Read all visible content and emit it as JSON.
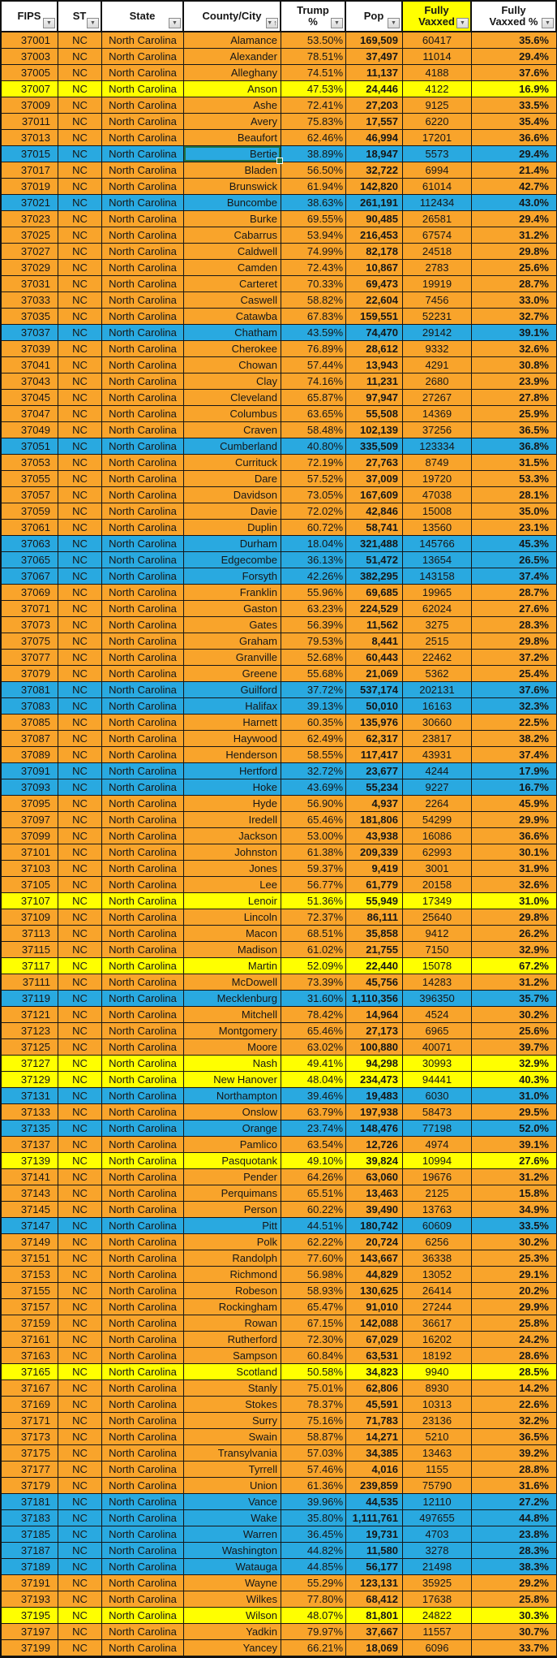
{
  "colors": {
    "row_orange": "#F9A42B",
    "row_yellow": "#FFFF00",
    "row_blue": "#29A9E0",
    "header_highlight": "#FFFF00",
    "selection_border": "#217346",
    "grid_line": "#161616"
  },
  "icons": {
    "filter_dropdown": "▼",
    "sort_ascending": "↑"
  },
  "table": {
    "headers": [
      {
        "key": "fips",
        "label": "FIPS"
      },
      {
        "key": "st",
        "label": "ST"
      },
      {
        "key": "state",
        "label": "State"
      },
      {
        "key": "county",
        "label": "County/City",
        "sorted": "ascending"
      },
      {
        "key": "trump_pct",
        "label": "Trump\n%"
      },
      {
        "key": "pop",
        "label": "Pop"
      },
      {
        "key": "fully_vaxxed",
        "label": "Fully\nVaxxed",
        "highlight": true
      },
      {
        "key": "fully_vaxxed_pct",
        "label": "Fully\nVaxxed %"
      }
    ],
    "selected_cell": {
      "fips": "37015",
      "column": "county"
    },
    "rows": [
      [
        "37001",
        "NC",
        "North Carolina",
        "Alamance",
        "53.50%",
        "169,509",
        "60417",
        "35.6%",
        "orange"
      ],
      [
        "37003",
        "NC",
        "North Carolina",
        "Alexander",
        "78.51%",
        "37,497",
        "11014",
        "29.4%",
        "orange"
      ],
      [
        "37005",
        "NC",
        "North Carolina",
        "Alleghany",
        "74.51%",
        "11,137",
        "4188",
        "37.6%",
        "orange"
      ],
      [
        "37007",
        "NC",
        "North Carolina",
        "Anson",
        "47.53%",
        "24,446",
        "4122",
        "16.9%",
        "yellow"
      ],
      [
        "37009",
        "NC",
        "North Carolina",
        "Ashe",
        "72.41%",
        "27,203",
        "9125",
        "33.5%",
        "orange"
      ],
      [
        "37011",
        "NC",
        "North Carolina",
        "Avery",
        "75.83%",
        "17,557",
        "6220",
        "35.4%",
        "orange"
      ],
      [
        "37013",
        "NC",
        "North Carolina",
        "Beaufort",
        "62.46%",
        "46,994",
        "17201",
        "36.6%",
        "orange"
      ],
      [
        "37015",
        "NC",
        "North Carolina",
        "Bertie",
        "38.89%",
        "18,947",
        "5573",
        "29.4%",
        "blue"
      ],
      [
        "37017",
        "NC",
        "North Carolina",
        "Bladen",
        "56.50%",
        "32,722",
        "6994",
        "21.4%",
        "orange"
      ],
      [
        "37019",
        "NC",
        "North Carolina",
        "Brunswick",
        "61.94%",
        "142,820",
        "61014",
        "42.7%",
        "orange"
      ],
      [
        "37021",
        "NC",
        "North Carolina",
        "Buncombe",
        "38.63%",
        "261,191",
        "112434",
        "43.0%",
        "blue"
      ],
      [
        "37023",
        "NC",
        "North Carolina",
        "Burke",
        "69.55%",
        "90,485",
        "26581",
        "29.4%",
        "orange"
      ],
      [
        "37025",
        "NC",
        "North Carolina",
        "Cabarrus",
        "53.94%",
        "216,453",
        "67574",
        "31.2%",
        "orange"
      ],
      [
        "37027",
        "NC",
        "North Carolina",
        "Caldwell",
        "74.99%",
        "82,178",
        "24518",
        "29.8%",
        "orange"
      ],
      [
        "37029",
        "NC",
        "North Carolina",
        "Camden",
        "72.43%",
        "10,867",
        "2783",
        "25.6%",
        "orange"
      ],
      [
        "37031",
        "NC",
        "North Carolina",
        "Carteret",
        "70.33%",
        "69,473",
        "19919",
        "28.7%",
        "orange"
      ],
      [
        "37033",
        "NC",
        "North Carolina",
        "Caswell",
        "58.82%",
        "22,604",
        "7456",
        "33.0%",
        "orange"
      ],
      [
        "37035",
        "NC",
        "North Carolina",
        "Catawba",
        "67.83%",
        "159,551",
        "52231",
        "32.7%",
        "orange"
      ],
      [
        "37037",
        "NC",
        "North Carolina",
        "Chatham",
        "43.59%",
        "74,470",
        "29142",
        "39.1%",
        "blue"
      ],
      [
        "37039",
        "NC",
        "North Carolina",
        "Cherokee",
        "76.89%",
        "28,612",
        "9332",
        "32.6%",
        "orange"
      ],
      [
        "37041",
        "NC",
        "North Carolina",
        "Chowan",
        "57.44%",
        "13,943",
        "4291",
        "30.8%",
        "orange"
      ],
      [
        "37043",
        "NC",
        "North Carolina",
        "Clay",
        "74.16%",
        "11,231",
        "2680",
        "23.9%",
        "orange"
      ],
      [
        "37045",
        "NC",
        "North Carolina",
        "Cleveland",
        "65.87%",
        "97,947",
        "27267",
        "27.8%",
        "orange"
      ],
      [
        "37047",
        "NC",
        "North Carolina",
        "Columbus",
        "63.65%",
        "55,508",
        "14369",
        "25.9%",
        "orange"
      ],
      [
        "37049",
        "NC",
        "North Carolina",
        "Craven",
        "58.48%",
        "102,139",
        "37256",
        "36.5%",
        "orange"
      ],
      [
        "37051",
        "NC",
        "North Carolina",
        "Cumberland",
        "40.80%",
        "335,509",
        "123334",
        "36.8%",
        "blue"
      ],
      [
        "37053",
        "NC",
        "North Carolina",
        "Currituck",
        "72.19%",
        "27,763",
        "8749",
        "31.5%",
        "orange"
      ],
      [
        "37055",
        "NC",
        "North Carolina",
        "Dare",
        "57.52%",
        "37,009",
        "19720",
        "53.3%",
        "orange"
      ],
      [
        "37057",
        "NC",
        "North Carolina",
        "Davidson",
        "73.05%",
        "167,609",
        "47038",
        "28.1%",
        "orange"
      ],
      [
        "37059",
        "NC",
        "North Carolina",
        "Davie",
        "72.02%",
        "42,846",
        "15008",
        "35.0%",
        "orange"
      ],
      [
        "37061",
        "NC",
        "North Carolina",
        "Duplin",
        "60.72%",
        "58,741",
        "13560",
        "23.1%",
        "orange"
      ],
      [
        "37063",
        "NC",
        "North Carolina",
        "Durham",
        "18.04%",
        "321,488",
        "145766",
        "45.3%",
        "blue"
      ],
      [
        "37065",
        "NC",
        "North Carolina",
        "Edgecombe",
        "36.13%",
        "51,472",
        "13654",
        "26.5%",
        "blue"
      ],
      [
        "37067",
        "NC",
        "North Carolina",
        "Forsyth",
        "42.26%",
        "382,295",
        "143158",
        "37.4%",
        "blue"
      ],
      [
        "37069",
        "NC",
        "North Carolina",
        "Franklin",
        "55.96%",
        "69,685",
        "19965",
        "28.7%",
        "orange"
      ],
      [
        "37071",
        "NC",
        "North Carolina",
        "Gaston",
        "63.23%",
        "224,529",
        "62024",
        "27.6%",
        "orange"
      ],
      [
        "37073",
        "NC",
        "North Carolina",
        "Gates",
        "56.39%",
        "11,562",
        "3275",
        "28.3%",
        "orange"
      ],
      [
        "37075",
        "NC",
        "North Carolina",
        "Graham",
        "79.53%",
        "8,441",
        "2515",
        "29.8%",
        "orange"
      ],
      [
        "37077",
        "NC",
        "North Carolina",
        "Granville",
        "52.68%",
        "60,443",
        "22462",
        "37.2%",
        "orange"
      ],
      [
        "37079",
        "NC",
        "North Carolina",
        "Greene",
        "55.68%",
        "21,069",
        "5362",
        "25.4%",
        "orange"
      ],
      [
        "37081",
        "NC",
        "North Carolina",
        "Guilford",
        "37.72%",
        "537,174",
        "202131",
        "37.6%",
        "blue"
      ],
      [
        "37083",
        "NC",
        "North Carolina",
        "Halifax",
        "39.13%",
        "50,010",
        "16163",
        "32.3%",
        "blue"
      ],
      [
        "37085",
        "NC",
        "North Carolina",
        "Harnett",
        "60.35%",
        "135,976",
        "30660",
        "22.5%",
        "orange"
      ],
      [
        "37087",
        "NC",
        "North Carolina",
        "Haywood",
        "62.49%",
        "62,317",
        "23817",
        "38.2%",
        "orange"
      ],
      [
        "37089",
        "NC",
        "North Carolina",
        "Henderson",
        "58.55%",
        "117,417",
        "43931",
        "37.4%",
        "orange"
      ],
      [
        "37091",
        "NC",
        "North Carolina",
        "Hertford",
        "32.72%",
        "23,677",
        "4244",
        "17.9%",
        "blue"
      ],
      [
        "37093",
        "NC",
        "North Carolina",
        "Hoke",
        "43.69%",
        "55,234",
        "9227",
        "16.7%",
        "blue"
      ],
      [
        "37095",
        "NC",
        "North Carolina",
        "Hyde",
        "56.90%",
        "4,937",
        "2264",
        "45.9%",
        "orange"
      ],
      [
        "37097",
        "NC",
        "North Carolina",
        "Iredell",
        "65.46%",
        "181,806",
        "54299",
        "29.9%",
        "orange"
      ],
      [
        "37099",
        "NC",
        "North Carolina",
        "Jackson",
        "53.00%",
        "43,938",
        "16086",
        "36.6%",
        "orange"
      ],
      [
        "37101",
        "NC",
        "North Carolina",
        "Johnston",
        "61.38%",
        "209,339",
        "62993",
        "30.1%",
        "orange"
      ],
      [
        "37103",
        "NC",
        "North Carolina",
        "Jones",
        "59.37%",
        "9,419",
        "3001",
        "31.9%",
        "orange"
      ],
      [
        "37105",
        "NC",
        "North Carolina",
        "Lee",
        "56.77%",
        "61,779",
        "20158",
        "32.6%",
        "orange"
      ],
      [
        "37107",
        "NC",
        "North Carolina",
        "Lenoir",
        "51.36%",
        "55,949",
        "17349",
        "31.0%",
        "yellow"
      ],
      [
        "37109",
        "NC",
        "North Carolina",
        "Lincoln",
        "72.37%",
        "86,111",
        "25640",
        "29.8%",
        "orange"
      ],
      [
        "37113",
        "NC",
        "North Carolina",
        "Macon",
        "68.51%",
        "35,858",
        "9412",
        "26.2%",
        "orange"
      ],
      [
        "37115",
        "NC",
        "North Carolina",
        "Madison",
        "61.02%",
        "21,755",
        "7150",
        "32.9%",
        "orange"
      ],
      [
        "37117",
        "NC",
        "North Carolina",
        "Martin",
        "52.09%",
        "22,440",
        "15078",
        "67.2%",
        "yellow"
      ],
      [
        "37111",
        "NC",
        "North Carolina",
        "McDowell",
        "73.39%",
        "45,756",
        "14283",
        "31.2%",
        "orange"
      ],
      [
        "37119",
        "NC",
        "North Carolina",
        "Mecklenburg",
        "31.60%",
        "1,110,356",
        "396350",
        "35.7%",
        "blue"
      ],
      [
        "37121",
        "NC",
        "North Carolina",
        "Mitchell",
        "78.42%",
        "14,964",
        "4524",
        "30.2%",
        "orange"
      ],
      [
        "37123",
        "NC",
        "North Carolina",
        "Montgomery",
        "65.46%",
        "27,173",
        "6965",
        "25.6%",
        "orange"
      ],
      [
        "37125",
        "NC",
        "North Carolina",
        "Moore",
        "63.02%",
        "100,880",
        "40071",
        "39.7%",
        "orange"
      ],
      [
        "37127",
        "NC",
        "North Carolina",
        "Nash",
        "49.41%",
        "94,298",
        "30993",
        "32.9%",
        "yellow"
      ],
      [
        "37129",
        "NC",
        "North Carolina",
        "New Hanover",
        "48.04%",
        "234,473",
        "94441",
        "40.3%",
        "yellow"
      ],
      [
        "37131",
        "NC",
        "North Carolina",
        "Northampton",
        "39.46%",
        "19,483",
        "6030",
        "31.0%",
        "blue"
      ],
      [
        "37133",
        "NC",
        "North Carolina",
        "Onslow",
        "63.79%",
        "197,938",
        "58473",
        "29.5%",
        "orange"
      ],
      [
        "37135",
        "NC",
        "North Carolina",
        "Orange",
        "23.74%",
        "148,476",
        "77198",
        "52.0%",
        "blue"
      ],
      [
        "37137",
        "NC",
        "North Carolina",
        "Pamlico",
        "63.54%",
        "12,726",
        "4974",
        "39.1%",
        "orange"
      ],
      [
        "37139",
        "NC",
        "North Carolina",
        "Pasquotank",
        "49.10%",
        "39,824",
        "10994",
        "27.6%",
        "yellow"
      ],
      [
        "37141",
        "NC",
        "North Carolina",
        "Pender",
        "64.26%",
        "63,060",
        "19676",
        "31.2%",
        "orange"
      ],
      [
        "37143",
        "NC",
        "North Carolina",
        "Perquimans",
        "65.51%",
        "13,463",
        "2125",
        "15.8%",
        "orange"
      ],
      [
        "37145",
        "NC",
        "North Carolina",
        "Person",
        "60.22%",
        "39,490",
        "13763",
        "34.9%",
        "orange"
      ],
      [
        "37147",
        "NC",
        "North Carolina",
        "Pitt",
        "44.51%",
        "180,742",
        "60609",
        "33.5%",
        "blue"
      ],
      [
        "37149",
        "NC",
        "North Carolina",
        "Polk",
        "62.22%",
        "20,724",
        "6256",
        "30.2%",
        "orange"
      ],
      [
        "37151",
        "NC",
        "North Carolina",
        "Randolph",
        "77.60%",
        "143,667",
        "36338",
        "25.3%",
        "orange"
      ],
      [
        "37153",
        "NC",
        "North Carolina",
        "Richmond",
        "56.98%",
        "44,829",
        "13052",
        "29.1%",
        "orange"
      ],
      [
        "37155",
        "NC",
        "North Carolina",
        "Robeson",
        "58.93%",
        "130,625",
        "26414",
        "20.2%",
        "orange"
      ],
      [
        "37157",
        "NC",
        "North Carolina",
        "Rockingham",
        "65.47%",
        "91,010",
        "27244",
        "29.9%",
        "orange"
      ],
      [
        "37159",
        "NC",
        "North Carolina",
        "Rowan",
        "67.15%",
        "142,088",
        "36617",
        "25.8%",
        "orange"
      ],
      [
        "37161",
        "NC",
        "North Carolina",
        "Rutherford",
        "72.30%",
        "67,029",
        "16202",
        "24.2%",
        "orange"
      ],
      [
        "37163",
        "NC",
        "North Carolina",
        "Sampson",
        "60.84%",
        "63,531",
        "18192",
        "28.6%",
        "orange"
      ],
      [
        "37165",
        "NC",
        "North Carolina",
        "Scotland",
        "50.58%",
        "34,823",
        "9940",
        "28.5%",
        "yellow"
      ],
      [
        "37167",
        "NC",
        "North Carolina",
        "Stanly",
        "75.01%",
        "62,806",
        "8930",
        "14.2%",
        "orange"
      ],
      [
        "37169",
        "NC",
        "North Carolina",
        "Stokes",
        "78.37%",
        "45,591",
        "10313",
        "22.6%",
        "orange"
      ],
      [
        "37171",
        "NC",
        "North Carolina",
        "Surry",
        "75.16%",
        "71,783",
        "23136",
        "32.2%",
        "orange"
      ],
      [
        "37173",
        "NC",
        "North Carolina",
        "Swain",
        "58.87%",
        "14,271",
        "5210",
        "36.5%",
        "orange"
      ],
      [
        "37175",
        "NC",
        "North Carolina",
        "Transylvania",
        "57.03%",
        "34,385",
        "13463",
        "39.2%",
        "orange"
      ],
      [
        "37177",
        "NC",
        "North Carolina",
        "Tyrrell",
        "57.46%",
        "4,016",
        "1155",
        "28.8%",
        "orange"
      ],
      [
        "37179",
        "NC",
        "North Carolina",
        "Union",
        "61.36%",
        "239,859",
        "75790",
        "31.6%",
        "orange"
      ],
      [
        "37181",
        "NC",
        "North Carolina",
        "Vance",
        "39.96%",
        "44,535",
        "12110",
        "27.2%",
        "blue"
      ],
      [
        "37183",
        "NC",
        "North Carolina",
        "Wake",
        "35.80%",
        "1,111,761",
        "497655",
        "44.8%",
        "blue"
      ],
      [
        "37185",
        "NC",
        "North Carolina",
        "Warren",
        "36.45%",
        "19,731",
        "4703",
        "23.8%",
        "blue"
      ],
      [
        "37187",
        "NC",
        "North Carolina",
        "Washington",
        "44.82%",
        "11,580",
        "3278",
        "28.3%",
        "blue"
      ],
      [
        "37189",
        "NC",
        "North Carolina",
        "Watauga",
        "44.85%",
        "56,177",
        "21498",
        "38.3%",
        "blue"
      ],
      [
        "37191",
        "NC",
        "North Carolina",
        "Wayne",
        "55.29%",
        "123,131",
        "35925",
        "29.2%",
        "orange"
      ],
      [
        "37193",
        "NC",
        "North Carolina",
        "Wilkes",
        "77.80%",
        "68,412",
        "17638",
        "25.8%",
        "orange"
      ],
      [
        "37195",
        "NC",
        "North Carolina",
        "Wilson",
        "48.07%",
        "81,801",
        "24822",
        "30.3%",
        "yellow"
      ],
      [
        "37197",
        "NC",
        "North Carolina",
        "Yadkin",
        "79.97%",
        "37,667",
        "11557",
        "30.7%",
        "orange"
      ],
      [
        "37199",
        "NC",
        "North Carolina",
        "Yancey",
        "66.21%",
        "18,069",
        "6096",
        "33.7%",
        "orange"
      ]
    ]
  }
}
